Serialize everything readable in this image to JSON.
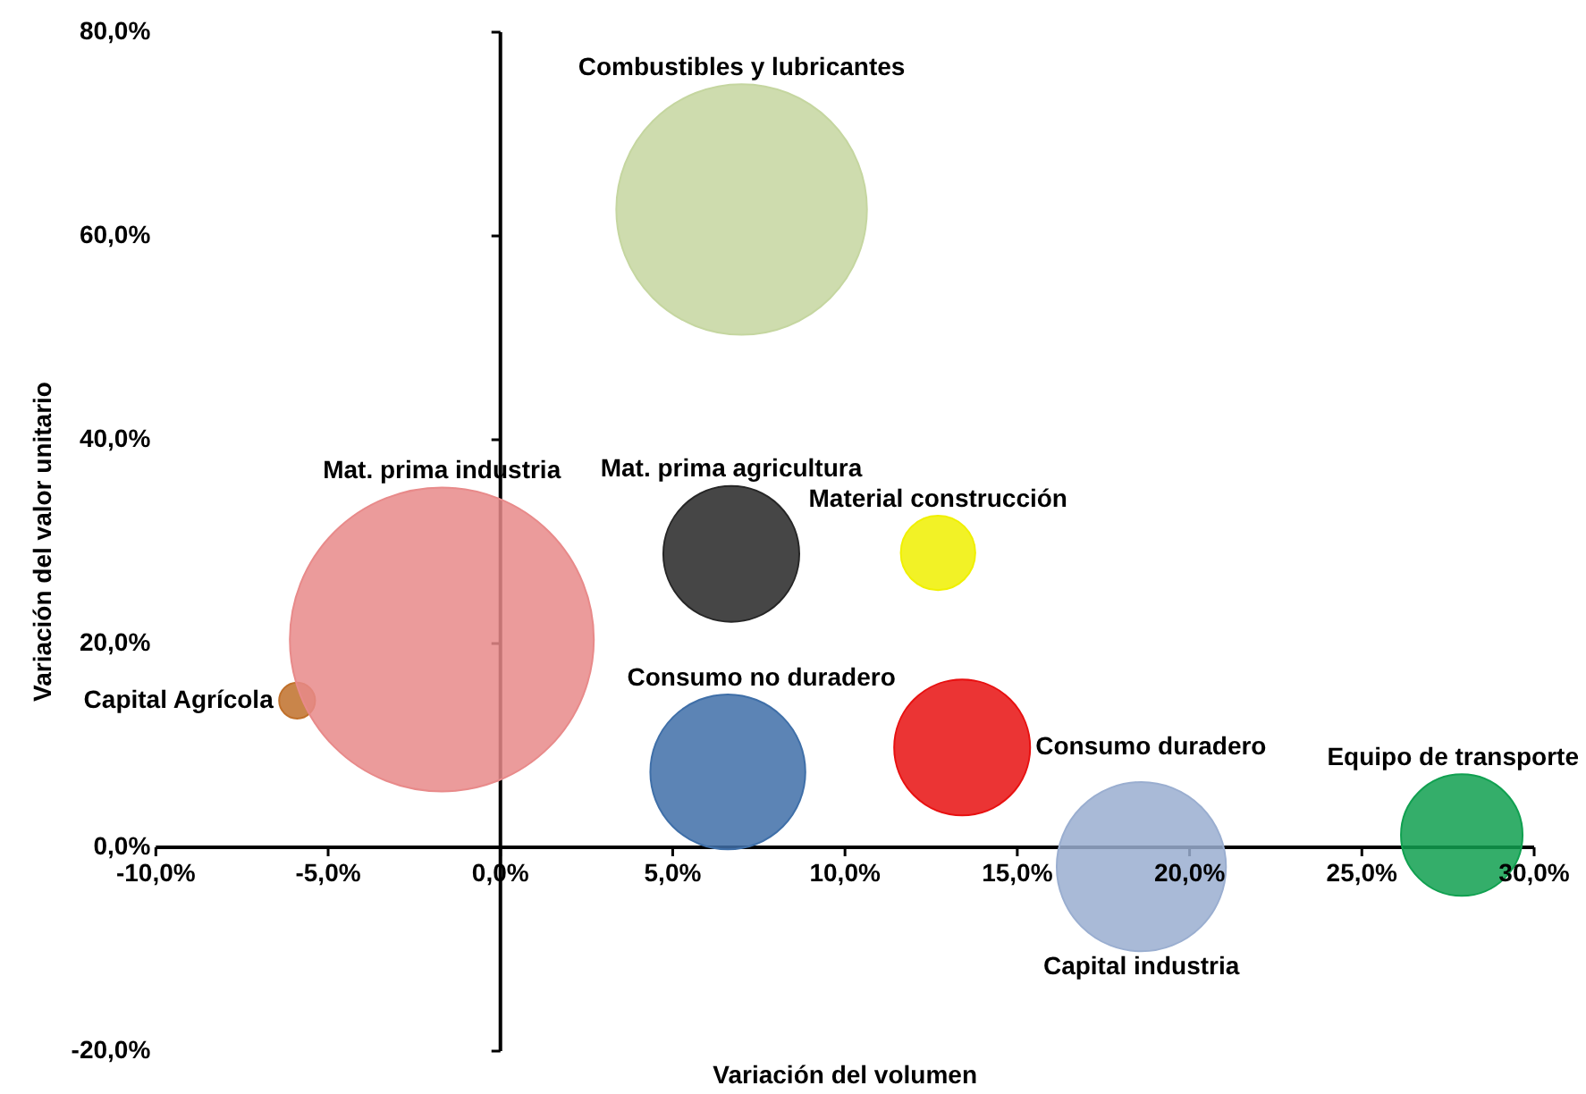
{
  "chart_data": {
    "type": "bubble",
    "xlabel": "Variación del volumen",
    "ylabel": "Variación del valor unitario",
    "xlim": [
      -10,
      30
    ],
    "ylim": [
      -20,
      80
    ],
    "xticks": [
      {
        "value": -10,
        "label": "-10,0%"
      },
      {
        "value": -5,
        "label": "-5,0%"
      },
      {
        "value": 0,
        "label": "0,0%"
      },
      {
        "value": 5,
        "label": "5,0%"
      },
      {
        "value": 10,
        "label": "10,0%"
      },
      {
        "value": 15,
        "label": "15,0%"
      },
      {
        "value": 20,
        "label": "20,0%"
      },
      {
        "value": 25,
        "label": "25,0%"
      },
      {
        "value": 30,
        "label": "30,0%"
      }
    ],
    "yticks": [
      {
        "value": -20,
        "label": "-20,0%"
      },
      {
        "value": 0,
        "label": "0,0%"
      },
      {
        "value": 20,
        "label": "20,0%"
      },
      {
        "value": 40,
        "label": "40,0%"
      },
      {
        "value": 60,
        "label": "60,0%"
      },
      {
        "value": 80,
        "label": "80,0%"
      }
    ],
    "legend": false,
    "series": [
      {
        "name": "Combustibles y lubricantes",
        "color": "#c5d6a0",
        "x": [
          7.0
        ],
        "values": [
          62.6
        ],
        "sizes": [
          0.68
        ]
      },
      {
        "name": "Mat. prima industria",
        "color": "#e88a8a",
        "x": [
          -1.7
        ],
        "values": [
          20.4
        ],
        "sizes": [
          1
        ]
      },
      {
        "name": "Mat. prima agricultura",
        "color": "#262626",
        "x": [
          6.7
        ],
        "values": [
          28.8
        ],
        "sizes": [
          0.2
        ]
      },
      {
        "name": "Material construcción",
        "color": "#f0f000",
        "x": [
          12.7
        ],
        "values": [
          28.9
        ],
        "sizes": [
          0.06
        ]
      },
      {
        "name": "Capital Agrícola",
        "color": "#c0702a",
        "x": [
          -5.9
        ],
        "values": [
          14.4
        ],
        "sizes": [
          0.014
        ]
      },
      {
        "name": "Consumo no duradero",
        "color": "#3f6fa8",
        "x": [
          6.6
        ],
        "values": [
          7.4
        ],
        "sizes": [
          0.26
        ]
      },
      {
        "name": "Consumo duradero",
        "color": "#e81010",
        "x": [
          13.4
        ],
        "values": [
          9.8
        ],
        "sizes": [
          0.2
        ]
      },
      {
        "name": "Capital industria",
        "color": "#9aaed0",
        "x": [
          18.6
        ],
        "values": [
          -1.9
        ],
        "sizes": [
          0.31
        ]
      },
      {
        "name": "Equipo de transporte",
        "color": "#10a050",
        "x": [
          27.9
        ],
        "values": [
          1.2
        ],
        "sizes": [
          0.16
        ]
      }
    ]
  }
}
